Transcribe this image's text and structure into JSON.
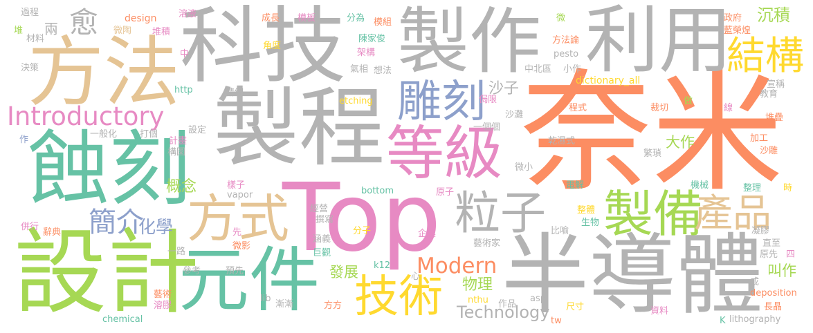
{
  "colors": {
    "gray": "#b3b3b3",
    "orange": "#fc8d62",
    "teal": "#66c2a5",
    "blue": "#8da0cb",
    "pink": "#e78ac3",
    "lime": "#a6d854",
    "yellow": "#ffd92f",
    "tan": "#e5c494"
  },
  "words": [
    {
      "text": "奈米",
      "color": "orange"
    },
    {
      "text": "Top",
      "color": "pink"
    },
    {
      "text": "科技",
      "color": "gray"
    },
    {
      "text": "製作",
      "color": "gray"
    },
    {
      "text": "製程",
      "color": "gray"
    },
    {
      "text": "利用",
      "color": "gray"
    },
    {
      "text": "半導體",
      "color": "gray"
    },
    {
      "text": "方法",
      "color": "tan"
    },
    {
      "text": "蝕刻",
      "color": "teal"
    },
    {
      "text": "設計",
      "color": "lime"
    },
    {
      "text": "元件",
      "color": "teal"
    },
    {
      "text": "等級",
      "color": "pink"
    },
    {
      "text": "雕刻",
      "color": "blue"
    },
    {
      "text": "方式",
      "color": "tan"
    },
    {
      "text": "製備",
      "color": "lime"
    },
    {
      "text": "技術",
      "color": "yellow"
    },
    {
      "text": "粒子",
      "color": "gray"
    },
    {
      "text": "結構",
      "color": "yellow"
    },
    {
      "text": "產品",
      "color": "tan"
    },
    {
      "text": "Introductory",
      "color": "pink"
    },
    {
      "text": "Modern",
      "color": "orange"
    },
    {
      "text": "愈",
      "color": "gray"
    },
    {
      "text": "簡介",
      "color": "blue"
    },
    {
      "text": "化學",
      "color": "blue"
    },
    {
      "text": "沉積",
      "color": "lime"
    },
    {
      "text": "Technology",
      "color": "gray"
    },
    {
      "text": "物理",
      "color": "lime"
    },
    {
      "text": "發展",
      "color": "lime"
    },
    {
      "text": "概念",
      "color": "lime"
    },
    {
      "text": "叫作",
      "color": "lime"
    },
    {
      "text": "大作",
      "color": "lime"
    },
    {
      "text": "沙子",
      "color": "gray"
    },
    {
      "text": "兩",
      "color": "gray"
    },
    {
      "text": "成長",
      "color": "orange"
    },
    {
      "text": "模板",
      "color": "pink"
    },
    {
      "text": "分為",
      "color": "teal"
    },
    {
      "text": "模組",
      "color": "orange"
    },
    {
      "text": "陳家俊",
      "color": "teal"
    },
    {
      "text": "架構",
      "color": "pink"
    },
    {
      "text": "想法",
      "color": "gray"
    },
    {
      "text": "design",
      "color": "orange"
    },
    {
      "text": "溶液",
      "color": "pink"
    },
    {
      "text": "堆積",
      "color": "pink"
    },
    {
      "text": "微陶",
      "color": "tan"
    },
    {
      "text": "過程",
      "color": "gray"
    },
    {
      "text": "材料",
      "color": "gray"
    },
    {
      "text": "堆",
      "color": "lime"
    },
    {
      "text": "決策",
      "color": "gray"
    },
    {
      "text": "角度",
      "color": "yellow"
    },
    {
      "text": "氣相",
      "color": "gray"
    },
    {
      "text": "方法論",
      "color": "orange"
    },
    {
      "text": "pesto",
      "color": "gray"
    },
    {
      "text": "政府",
      "color": "orange"
    },
    {
      "text": "藍榮煌",
      "color": "orange"
    },
    {
      "text": "微",
      "color": "lime"
    },
    {
      "text": "中北區",
      "color": "gray"
    },
    {
      "text": "小作",
      "color": "gray"
    },
    {
      "text": "dictionary_all",
      "color": "yellow"
    },
    {
      "text": "宣稱",
      "color": "gray"
    },
    {
      "text": "教育",
      "color": "gray"
    },
    {
      "text": "線",
      "color": "pink"
    },
    {
      "text": "http",
      "color": "teal"
    },
    {
      "text": "精細",
      "color": "gray"
    },
    {
      "text": "etching",
      "color": "yellow"
    },
    {
      "text": "侷限",
      "color": "pink"
    },
    {
      "text": "中",
      "color": "pink"
    },
    {
      "text": "沙灘",
      "color": "gray"
    },
    {
      "text": "程式",
      "color": "orange"
    },
    {
      "text": "裁切",
      "color": "orange"
    },
    {
      "text": "做",
      "color": "lime"
    },
    {
      "text": "一個個",
      "color": "gray"
    },
    {
      "text": "乾濕式",
      "color": "gray"
    },
    {
      "text": "一般化",
      "color": "gray"
    },
    {
      "text": "打個",
      "color": "gray"
    },
    {
      "text": "設定",
      "color": "gray"
    },
    {
      "text": "作",
      "color": "blue"
    },
    {
      "text": "計畫",
      "color": "pink"
    },
    {
      "text": "構圖",
      "color": "gray"
    },
    {
      "text": "加工",
      "color": "orange"
    },
    {
      "text": "堆疊",
      "color": "orange"
    },
    {
      "text": "沙雕",
      "color": "orange"
    },
    {
      "text": "繁瑣",
      "color": "gray"
    },
    {
      "text": "微小",
      "color": "gray"
    },
    {
      "text": "樣子",
      "color": "pink"
    },
    {
      "text": "vapor",
      "color": "gray"
    },
    {
      "text": "bottom",
      "color": "teal"
    },
    {
      "text": "電解",
      "color": "teal"
    },
    {
      "text": "機械",
      "color": "teal"
    },
    {
      "text": "整理",
      "color": "teal"
    },
    {
      "text": "時",
      "color": "yellow"
    },
    {
      "text": "原子",
      "color": "pink"
    },
    {
      "text": "經營",
      "color": "gray"
    },
    {
      "text": "撰寫",
      "color": "gray"
    },
    {
      "text": "併行",
      "color": "pink"
    },
    {
      "text": "辭典",
      "color": "orange"
    },
    {
      "text": "整體",
      "color": "yellow"
    },
    {
      "text": "生物",
      "color": "teal"
    },
    {
      "text": "比喻",
      "color": "gray"
    },
    {
      "text": "凝膠",
      "color": "gray"
    },
    {
      "text": "分子",
      "color": "yellow"
    },
    {
      "text": "企業",
      "color": "pink"
    },
    {
      "text": "涵義",
      "color": "gray"
    },
    {
      "text": "先",
      "color": "pink"
    },
    {
      "text": "一路",
      "color": "gray"
    },
    {
      "text": "微影",
      "color": "orange"
    },
    {
      "text": "巨觀",
      "color": "teal"
    },
    {
      "text": "藝術家",
      "color": "gray"
    },
    {
      "text": "直至",
      "color": "gray"
    },
    {
      "text": "原先",
      "color": "gray"
    },
    {
      "text": "四",
      "color": "pink"
    },
    {
      "text": "參考",
      "color": "gray"
    },
    {
      "text": "預先",
      "color": "gray"
    },
    {
      "text": "藝術",
      "color": "orange"
    },
    {
      "text": "溶膠",
      "color": "pink"
    },
    {
      "text": "k12",
      "color": "teal"
    },
    {
      "text": "心",
      "color": "gray"
    },
    {
      "text": "成",
      "color": "gray"
    },
    {
      "text": "deposition",
      "color": "orange"
    },
    {
      "text": "長晶",
      "color": "orange"
    },
    {
      "text": "lib",
      "color": "gray"
    },
    {
      "text": "漸漸",
      "color": "gray"
    },
    {
      "text": "方方",
      "color": "orange"
    },
    {
      "text": "nthu",
      "color": "yellow"
    },
    {
      "text": "作品",
      "color": "gray"
    },
    {
      "text": "asp",
      "color": "gray"
    },
    {
      "text": "尺寸",
      "color": "yellow"
    },
    {
      "text": "資料",
      "color": "pink"
    },
    {
      "text": "chemical",
      "color": "teal"
    },
    {
      "text": "tw",
      "color": "orange"
    },
    {
      "text": "K",
      "color": "teal"
    },
    {
      "text": "lithography",
      "color": "gray"
    }
  ]
}
